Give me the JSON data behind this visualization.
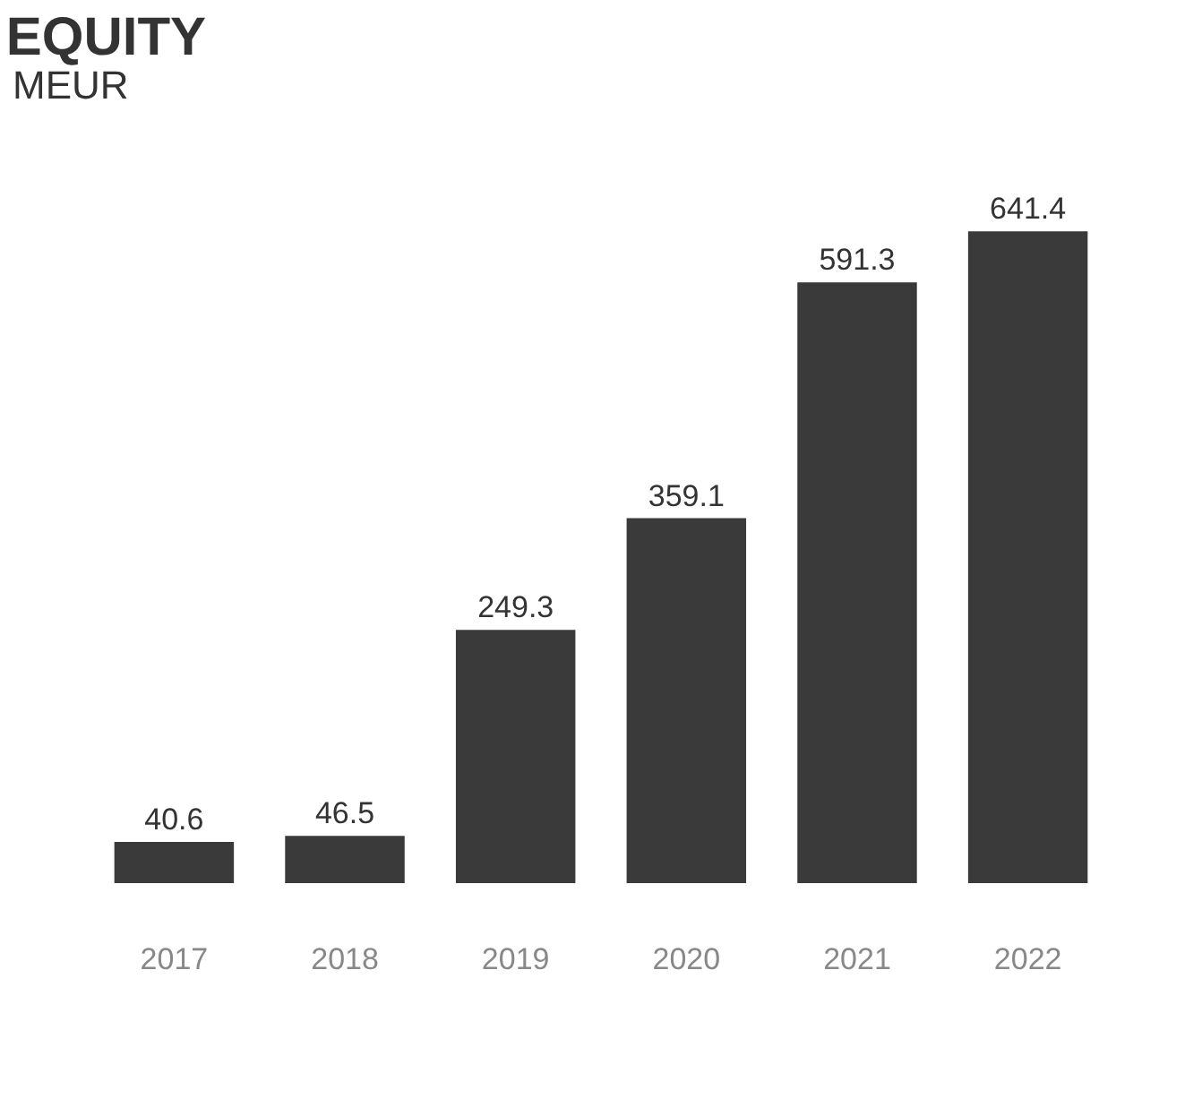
{
  "chart_data": {
    "type": "bar",
    "title": "EQUITY",
    "subtitle": "MEUR",
    "categories": [
      "2017",
      "2018",
      "2019",
      "2020",
      "2021",
      "2022"
    ],
    "values": [
      40.6,
      46.5,
      249.3,
      359.1,
      591.3,
      641.4
    ],
    "color": "#3a3a3a",
    "data_labels": true,
    "tick_labels": "x",
    "grid": false
  }
}
